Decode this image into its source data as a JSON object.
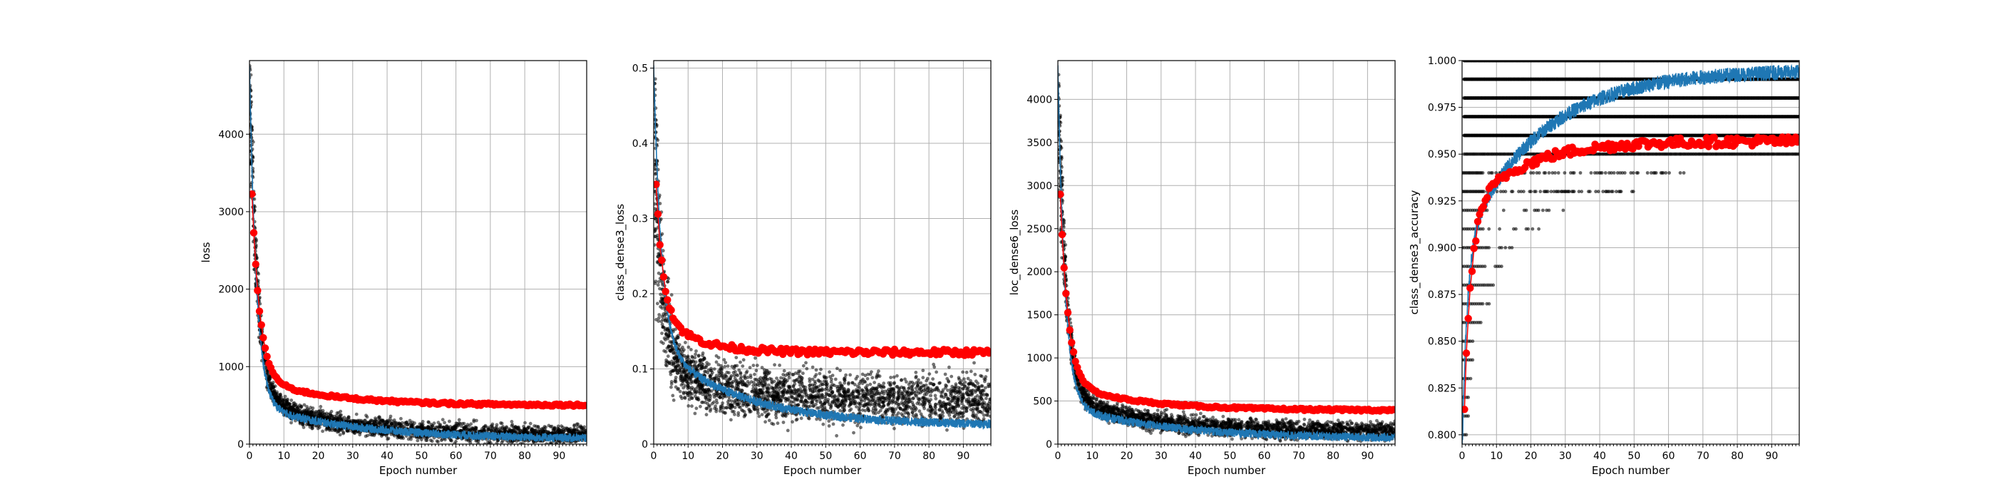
{
  "figure": {
    "background": "#ffffff"
  },
  "colors": {
    "train": "#1f77b4",
    "val": "#ff0000",
    "batch": "#000000",
    "grid": "#b0b0b0"
  },
  "chart_data": [
    {
      "type": "scatter",
      "title": "",
      "xlabel": "Epoch number",
      "ylabel": "loss",
      "xlim": [
        0,
        98
      ],
      "ylim": [
        0,
        4950
      ],
      "xticks": [
        0,
        10,
        20,
        30,
        40,
        50,
        60,
        70,
        80,
        90
      ],
      "yticks": [
        0,
        1000,
        2000,
        3000,
        4000
      ],
      "grid": true,
      "legend": "none",
      "series": [
        {
          "role": "batch-scatter",
          "color": "#000000",
          "curve": {
            "start": 4800,
            "asymptote": 120,
            "mid": 500,
            "decay1": 2.2,
            "decay2": 22,
            "spread": 230,
            "minspread": 110
          }
        },
        {
          "role": "train-line",
          "color": "#1f77b4",
          "curve": {
            "start": 4900,
            "asymptote": 60,
            "mid": 450,
            "decay1": 2.0,
            "decay2": 30,
            "jitter": 55
          }
        },
        {
          "role": "val-points",
          "color": "#ff0000",
          "curve": {
            "start": 4100,
            "asymptote": 500,
            "mid": 350,
            "decay1": 2.3,
            "decay2": 22,
            "jitter": 15
          }
        }
      ]
    },
    {
      "type": "scatter",
      "title": "",
      "xlabel": "Epoch number",
      "ylabel": "class_dense3_loss",
      "xlim": [
        0,
        98
      ],
      "ylim": [
        0,
        0.51
      ],
      "xticks": [
        0,
        10,
        20,
        30,
        40,
        50,
        60,
        70,
        80,
        90
      ],
      "yticks": [
        0.0,
        0.1,
        0.2,
        0.3,
        0.4,
        0.5
      ],
      "grid": true,
      "legend": "none",
      "series": [
        {
          "role": "batch-scatter",
          "color": "#000000",
          "curve": {
            "start": 0.47,
            "asymptote": 0.06,
            "mid": 0.06,
            "decay1": 2.0,
            "decay2": 15,
            "spread": 0.045,
            "minspread": 0.032
          }
        },
        {
          "role": "train-line",
          "color": "#1f77b4",
          "curve": {
            "start": 0.5,
            "asymptote": 0.025,
            "mid": 0.11,
            "decay1": 2.2,
            "decay2": 24,
            "jitter": 0.006
          }
        },
        {
          "role": "val-points",
          "color": "#ff0000",
          "curve": {
            "start": 0.42,
            "asymptote": 0.122,
            "mid": 0.06,
            "decay1": 2.0,
            "decay2": 10,
            "jitter": 0.004
          }
        }
      ]
    },
    {
      "type": "scatter",
      "title": "",
      "xlabel": "Epoch number",
      "ylabel": "loc_dense6_loss",
      "xlim": [
        0,
        98
      ],
      "ylim": [
        0,
        4450
      ],
      "xticks": [
        0,
        10,
        20,
        30,
        40,
        50,
        60,
        70,
        80,
        90
      ],
      "yticks": [
        0,
        500,
        1000,
        1500,
        2000,
        2500,
        3000,
        3500,
        4000
      ],
      "grid": true,
      "legend": "none",
      "series": [
        {
          "role": "batch-scatter",
          "color": "#000000",
          "curve": {
            "start": 4300,
            "asymptote": 150,
            "mid": 430,
            "decay1": 2.2,
            "decay2": 22,
            "spread": 210,
            "minspread": 100
          }
        },
        {
          "role": "train-line",
          "color": "#1f77b4",
          "curve": {
            "start": 4400,
            "asymptote": 60,
            "mid": 400,
            "decay1": 2.0,
            "decay2": 30,
            "jitter": 50
          }
        },
        {
          "role": "val-points",
          "color": "#ff0000",
          "curve": {
            "start": 3700,
            "asymptote": 390,
            "mid": 320,
            "decay1": 2.3,
            "decay2": 22,
            "jitter": 12
          }
        }
      ]
    },
    {
      "type": "scatter",
      "title": "",
      "xlabel": "Epoch number",
      "ylabel": "class_dense3_accuracy",
      "xlim": [
        0,
        98
      ],
      "ylim": [
        0.795,
        1.0
      ],
      "xticks": [
        0,
        10,
        20,
        30,
        40,
        50,
        60,
        70,
        80,
        90
      ],
      "yticks": [
        0.8,
        0.825,
        0.85,
        0.875,
        0.9,
        0.925,
        0.95,
        0.975,
        1.0
      ],
      "ytick_labels": [
        "0.800",
        "0.825",
        "0.850",
        "0.875",
        "0.900",
        "0.925",
        "0.950",
        "0.975",
        "1.000"
      ],
      "grid": true,
      "legend": "none",
      "series": [
        {
          "role": "batch-levels",
          "color": "#000000",
          "levels": [
            0.8,
            0.81,
            0.82,
            0.83,
            0.84,
            0.85,
            0.86,
            0.87,
            0.88,
            0.89,
            0.9,
            0.91,
            0.92,
            0.93,
            0.94,
            0.95,
            0.96,
            0.97,
            0.98,
            0.99,
            1.0
          ]
        },
        {
          "role": "train-line",
          "color": "#1f77b4",
          "curve": {
            "start": 0.79,
            "asymptote": 0.995,
            "mid": -0.095,
            "decay1": 1.5,
            "decay2": 22,
            "jitter": 0.004
          }
        },
        {
          "role": "val-points",
          "color": "#ff0000",
          "curve": {
            "start": 0.77,
            "asymptote": 0.957,
            "mid": -0.04,
            "decay1": 2.0,
            "decay2": 16,
            "jitter": 0.0025
          }
        }
      ]
    }
  ]
}
